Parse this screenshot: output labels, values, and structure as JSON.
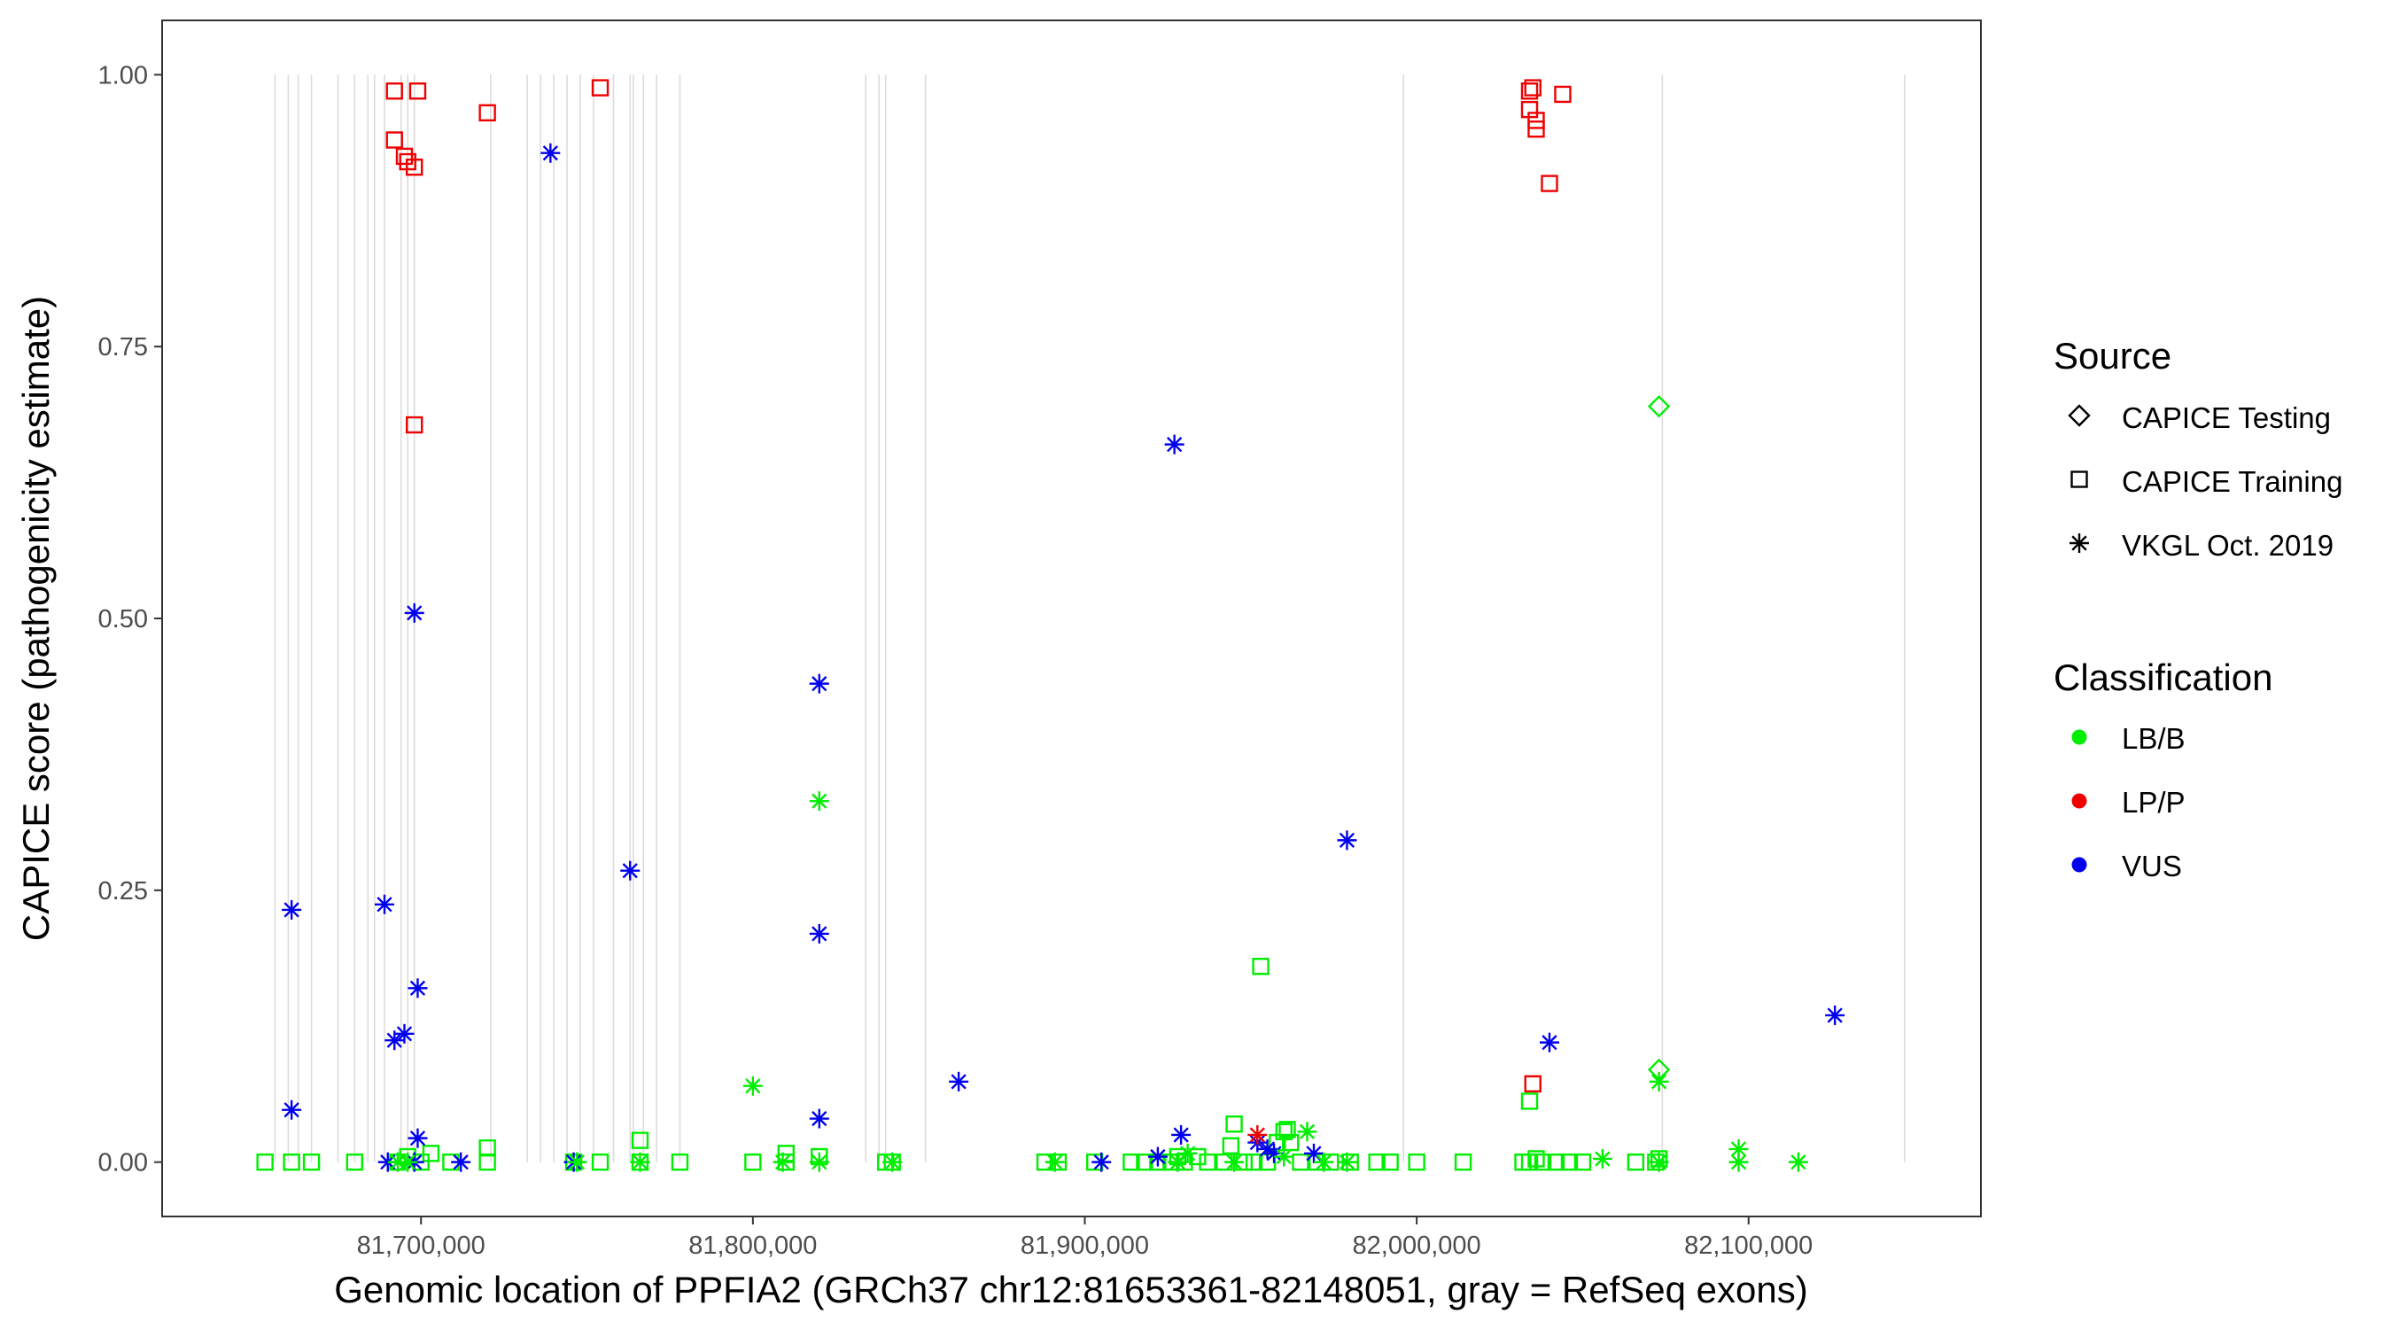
{
  "chart_data": {
    "type": "scatter",
    "xlabel": "Genomic location of PPFIA2 (GRCh37 chr12:81653361-82148051, gray = RefSeq exons)",
    "ylabel": "CAPICE score (pathogenicity estimate)",
    "xlim": [
      81622000,
      82170000
    ],
    "ylim": [
      -0.05,
      1.05
    ],
    "x_ticks": [
      81700000,
      81800000,
      81900000,
      82000000,
      82100000
    ],
    "x_tick_labels": [
      "81,700,000",
      "81,800,000",
      "81,900,000",
      "82,000,000",
      "82,100,000"
    ],
    "y_ticks": [
      0,
      0.25,
      0.5,
      0.75,
      1
    ],
    "y_tick_labels": [
      "0.00",
      "0.25",
      "0.50",
      "0.75",
      "1.00"
    ],
    "grid": false,
    "exons": [
      81656000,
      81660000,
      81663000,
      81667000,
      81675000,
      81680000,
      81684000,
      81686000,
      81689000,
      81694000,
      81696000,
      81698000,
      81721000,
      81732000,
      81736000,
      81740000,
      81744000,
      81748000,
      81752000,
      81758000,
      81763000,
      81764000,
      81767000,
      81771000,
      81778000,
      81834000,
      81838000,
      81840000,
      81852000,
      81996000,
      82074000,
      82147000
    ],
    "legend_position": "right",
    "legend": {
      "source": {
        "title": "Source",
        "entries": [
          {
            "label": "CAPICE Testing",
            "shape": "diamond"
          },
          {
            "label": "CAPICE Training",
            "shape": "square"
          },
          {
            "label": "VKGL Oct. 2019",
            "shape": "asterisk"
          }
        ]
      },
      "classification": {
        "title": "Classification",
        "entries": [
          {
            "label": "LB/B",
            "color": "#00ee00"
          },
          {
            "label": "LP/P",
            "color": "#ee0000"
          },
          {
            "label": "VUS",
            "color": "#0000ee"
          }
        ]
      }
    },
    "colors": {
      "LB/B": "#00ee00",
      "LP/P": "#ee0000",
      "VUS": "#0000ee"
    },
    "series": [
      {
        "source": "CAPICE Training",
        "shape": "square",
        "classification": "LP/P",
        "points": [
          [
            81692000,
            0.985
          ],
          [
            81699000,
            0.985
          ],
          [
            81692000,
            0.94
          ],
          [
            81695000,
            0.925
          ],
          [
            81696000,
            0.92
          ],
          [
            81698000,
            0.915
          ],
          [
            81720000,
            0.965
          ],
          [
            81754000,
            0.988
          ],
          [
            81698000,
            0.678
          ],
          [
            82034000,
            0.985
          ],
          [
            82035000,
            0.988
          ],
          [
            82034000,
            0.968
          ],
          [
            82036000,
            0.958
          ],
          [
            82036000,
            0.95
          ],
          [
            82044000,
            0.982
          ],
          [
            82040000,
            0.9
          ],
          [
            82035000,
            0.072
          ]
        ]
      },
      {
        "source": "CAPICE Training",
        "shape": "square",
        "classification": "LB/B",
        "points": [
          [
            81653000,
            0
          ],
          [
            81661000,
            0
          ],
          [
            81667000,
            0
          ],
          [
            81680000,
            0
          ],
          [
            81693000,
            0
          ],
          [
            81696000,
            0.005
          ],
          [
            81700000,
            0
          ],
          [
            81703000,
            0.008
          ],
          [
            81709000,
            0
          ],
          [
            81720000,
            0.013
          ],
          [
            81720000,
            0
          ],
          [
            81746000,
            0
          ],
          [
            81754000,
            0
          ],
          [
            81766000,
            0.02
          ],
          [
            81766000,
            0
          ],
          [
            81778000,
            0
          ],
          [
            81800000,
            0
          ],
          [
            81810000,
            0.008
          ],
          [
            81810000,
            0
          ],
          [
            81820000,
            0.005
          ],
          [
            81840000,
            0
          ],
          [
            81842000,
            0
          ],
          [
            81888000,
            0
          ],
          [
            81892000,
            0
          ],
          [
            81903000,
            0
          ],
          [
            81914000,
            0
          ],
          [
            81918000,
            0
          ],
          [
            81922000,
            0
          ],
          [
            81926000,
            0
          ],
          [
            81928000,
            0.005
          ],
          [
            81930000,
            0
          ],
          [
            81934000,
            0.005
          ],
          [
            81937000,
            0
          ],
          [
            81942000,
            0
          ],
          [
            81944000,
            0.015
          ],
          [
            81945000,
            0.035
          ],
          [
            81948000,
            0
          ],
          [
            81951000,
            0
          ],
          [
            81953000,
            0.18
          ],
          [
            81955000,
            0
          ],
          [
            81958000,
            0.018
          ],
          [
            81960000,
            0.028
          ],
          [
            81961000,
            0.03
          ],
          [
            81962000,
            0.018
          ],
          [
            81965000,
            0
          ],
          [
            81970000,
            0
          ],
          [
            81974000,
            0
          ],
          [
            81980000,
            0
          ],
          [
            81988000,
            0
          ],
          [
            81992000,
            0
          ],
          [
            82000000,
            0
          ],
          [
            82014000,
            0
          ],
          [
            82032000,
            0
          ],
          [
            82034000,
            0.056
          ],
          [
            82034000,
            0
          ],
          [
            82036000,
            0.003
          ],
          [
            82038000,
            0
          ],
          [
            82042000,
            0
          ],
          [
            82046000,
            0
          ],
          [
            82050000,
            0
          ],
          [
            82066000,
            0
          ],
          [
            82072000,
            0
          ],
          [
            82073000,
            0.003
          ]
        ]
      },
      {
        "source": "CAPICE Testing",
        "shape": "diamond",
        "classification": "LB/B",
        "points": [
          [
            82073000,
            0.695
          ],
          [
            82073000,
            0.085
          ]
        ]
      },
      {
        "source": "VKGL Oct. 2019",
        "shape": "asterisk",
        "classification": "VUS",
        "points": [
          [
            81661000,
            0.232
          ],
          [
            81661000,
            0.048
          ],
          [
            81689000,
            0.237
          ],
          [
            81692000,
            0.112
          ],
          [
            81695000,
            0.118
          ],
          [
            81698000,
            0.505
          ],
          [
            81699000,
            0.16
          ],
          [
            81699000,
            0.022
          ],
          [
            81690000,
            0
          ],
          [
            81698000,
            0
          ],
          [
            81712000,
            0
          ],
          [
            81739000,
            0.928
          ],
          [
            81746000,
            0
          ],
          [
            81763000,
            0.268
          ],
          [
            81820000,
            0.44
          ],
          [
            81820000,
            0.21
          ],
          [
            81820000,
            0.04
          ],
          [
            81862000,
            0.074
          ],
          [
            81905000,
            0
          ],
          [
            81922000,
            0.005
          ],
          [
            81929000,
            0.025
          ],
          [
            81927000,
            0.66
          ],
          [
            81952000,
            0.018
          ],
          [
            81955000,
            0.012
          ],
          [
            81957000,
            0.008
          ],
          [
            81969000,
            0.008
          ],
          [
            81979000,
            0.296
          ],
          [
            82040000,
            0.11
          ],
          [
            82126000,
            0.135
          ]
        ]
      },
      {
        "source": "VKGL Oct. 2019",
        "shape": "asterisk",
        "classification": "LB/B",
        "points": [
          [
            81693000,
            0
          ],
          [
            81696000,
            0
          ],
          [
            81747000,
            0
          ],
          [
            81766000,
            0
          ],
          [
            81800000,
            0.07
          ],
          [
            81809000,
            0
          ],
          [
            81820000,
            0.332
          ],
          [
            81820000,
            0
          ],
          [
            81842000,
            0
          ],
          [
            81891000,
            0
          ],
          [
            81928000,
            0
          ],
          [
            81931000,
            0.008
          ],
          [
            81945000,
            0
          ],
          [
            81960000,
            0.005
          ],
          [
            81967000,
            0.028
          ],
          [
            81972000,
            0
          ],
          [
            81979000,
            0
          ],
          [
            82056000,
            0.003
          ],
          [
            82073000,
            0.074
          ],
          [
            82073000,
            0
          ],
          [
            82097000,
            0.012
          ],
          [
            82097000,
            0
          ],
          [
            82115000,
            0
          ]
        ]
      },
      {
        "source": "VKGL Oct. 2019",
        "shape": "asterisk",
        "classification": "LP/P",
        "points": [
          [
            81952000,
            0.025
          ]
        ]
      }
    ]
  }
}
